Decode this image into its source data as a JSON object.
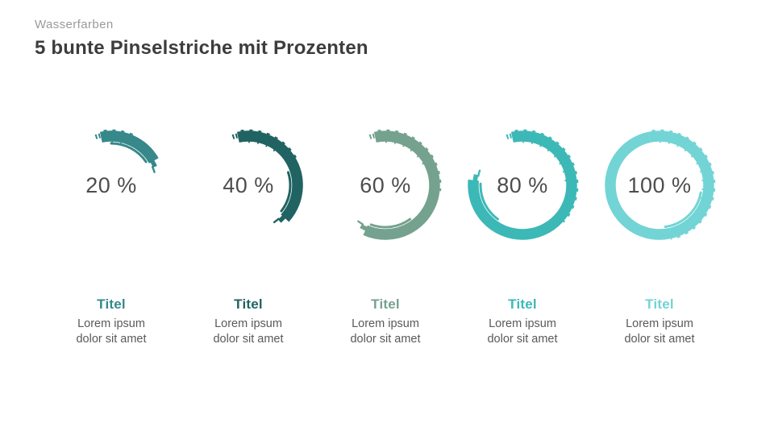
{
  "slide": {
    "category": "Wasserfarben",
    "title": "5 bunte Pinselstriche mit Prozenten",
    "background": "#ffffff",
    "text_colors": {
      "category": "#9A9A9A",
      "title": "#3D3D3D",
      "percent": "#4D4D4D",
      "description": "#595959"
    }
  },
  "items": [
    {
      "percent": 20,
      "percent_label": "20 %",
      "color": "#36888B",
      "title": "Titel",
      "description": "Lorem ipsum dolor sit amet"
    },
    {
      "percent": 40,
      "percent_label": "40 %",
      "color": "#206362",
      "title": "Titel",
      "description": "Lorem ipsum dolor sit amet"
    },
    {
      "percent": 60,
      "percent_label": "60 %",
      "color": "#74A28E",
      "title": "Titel",
      "description": "Lorem ipsum dolor sit amet"
    },
    {
      "percent": 80,
      "percent_label": "80 %",
      "color": "#3CB8B7",
      "title": "Titel",
      "description": "Lorem ipsum dolor sit amet"
    },
    {
      "percent": 100,
      "percent_label": "100 %",
      "color": "#72D4D5",
      "title": "Titel",
      "description": "Lorem ipsum dolor sit amet"
    }
  ]
}
